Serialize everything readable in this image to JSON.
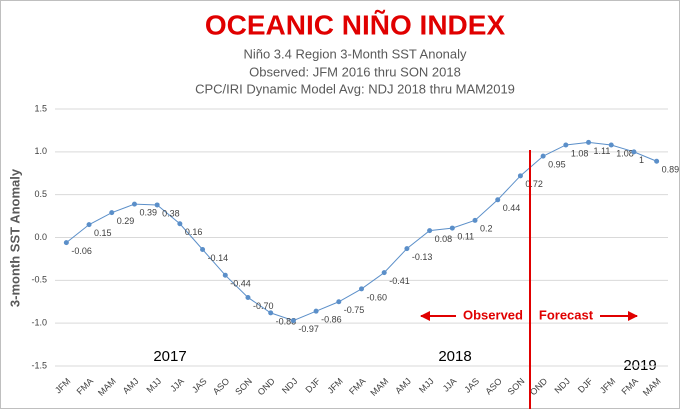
{
  "chart_data": {
    "type": "line",
    "title": "OCEANIC NIÑO INDEX",
    "subtitle": [
      "Niño 3.4 Region 3-Month SST Anonaly",
      "Observed: JFM 2016 thru SON 2018",
      "CPC/IRI Dynamic Model Avg: NDJ 2018 thru MAM2019"
    ],
    "y_label": "3-month SST Anomaly",
    "categories": [
      "JFM",
      "FMA",
      "MAM",
      "AMJ",
      "MJJ",
      "JJA",
      "JAS",
      "ASO",
      "SON",
      "OND",
      "NDJ",
      "DJF",
      "JFM",
      "FMA",
      "MAM",
      "AMJ",
      "MJJ",
      "JJA",
      "JAS",
      "ASO",
      "SON",
      "OND",
      "NDJ",
      "DJF",
      "JFM",
      "FMA",
      "MAM"
    ],
    "values": [
      -0.06,
      0.15,
      0.29,
      0.39,
      0.38,
      0.16,
      -0.14,
      -0.44,
      -0.7,
      -0.88,
      -0.97,
      -0.86,
      -0.75,
      -0.6,
      -0.41,
      -0.13,
      0.08,
      0.11,
      0.2,
      0.44,
      0.72,
      0.95,
      1.08,
      1.11,
      1.08,
      1,
      0.89
    ],
    "value_labels": [
      "-0.06",
      "0.15",
      "0.29",
      "0.39",
      "0.38",
      "0.16",
      "-0.14",
      "-0.44",
      "-0.70",
      "-0.88",
      "-0.97",
      "-0.86",
      "-0.75",
      "-0.60",
      "-0.41",
      "-0.13",
      "0.08",
      "0.11",
      "0.2",
      "0.44",
      "0.72",
      "0.95",
      "1.08",
      "1.11",
      "1.08",
      "1",
      "0.89"
    ],
    "color": "#5b8fc9",
    "ylim": [
      -1.5,
      1.5
    ],
    "yticks": [
      -1.5,
      {
        "value": -1,
        "label": "-1.0"
      },
      -0.5,
      {
        "value": 0,
        "label": "0.0"
      },
      0.5,
      {
        "value": 1,
        "label": "1.0"
      },
      1.5
    ],
    "grid": true,
    "annotations": [
      "2017",
      "2018",
      "2019",
      "Observed",
      "Forecast"
    ]
  }
}
